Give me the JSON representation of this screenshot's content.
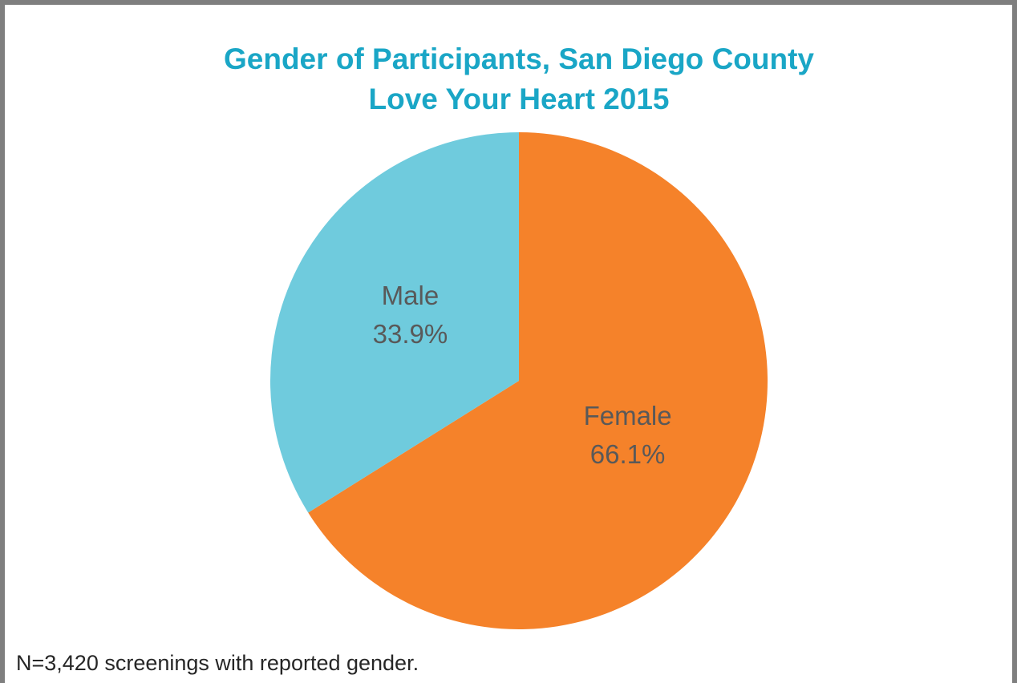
{
  "chart_data": {
    "type": "pie",
    "title": [
      "Gender of Participants, San Diego County",
      "Love Your Heart 2015"
    ],
    "categories": [
      "Female",
      "Male"
    ],
    "values": [
      66.1,
      33.9
    ],
    "value_labels": [
      "66.1%",
      "33.9%"
    ],
    "colors": [
      "#f5822a",
      "#6fcbdd"
    ],
    "note": "N=3,420 screenings with reported gender."
  }
}
